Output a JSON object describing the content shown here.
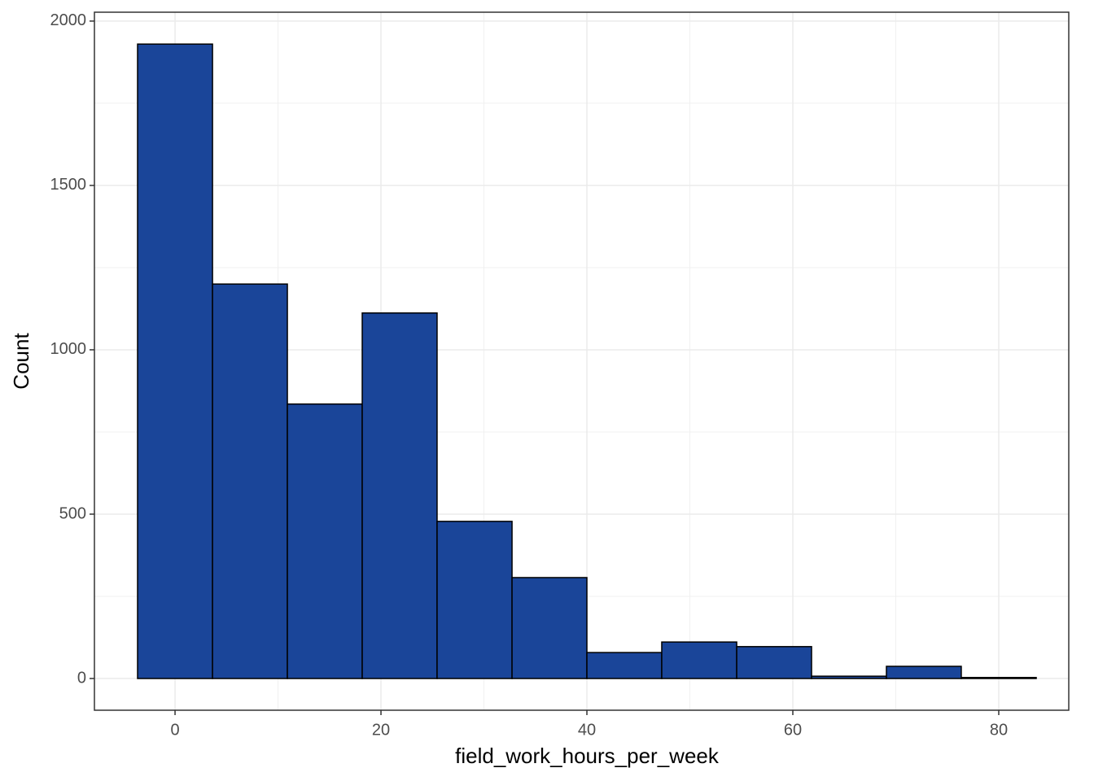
{
  "chart_data": {
    "type": "histogram",
    "x_label": "field_work_hours_per_week",
    "y_label": "Count",
    "bins": [
      -3.64,
      3.64,
      10.91,
      18.18,
      25.45,
      32.73,
      40,
      47.27,
      54.55,
      61.82,
      69.09,
      76.36,
      83.64
    ],
    "values": [
      1930,
      1200,
      835,
      1112,
      478,
      307,
      79,
      111,
      97,
      7,
      37,
      3
    ],
    "color": "#1a4599",
    "edge_color": "#000000",
    "xlim": [
      -7.83,
      86.8
    ],
    "ylim": [
      -96.5,
      2027
    ],
    "xticks": [
      0,
      20,
      40,
      60,
      80
    ],
    "yticks": [
      0,
      500,
      1000,
      1500,
      2000
    ],
    "x_minor_ticks": [
      10,
      30,
      50,
      70
    ],
    "y_minor_ticks": [
      250,
      750,
      1250,
      1750
    ],
    "grid": true
  }
}
